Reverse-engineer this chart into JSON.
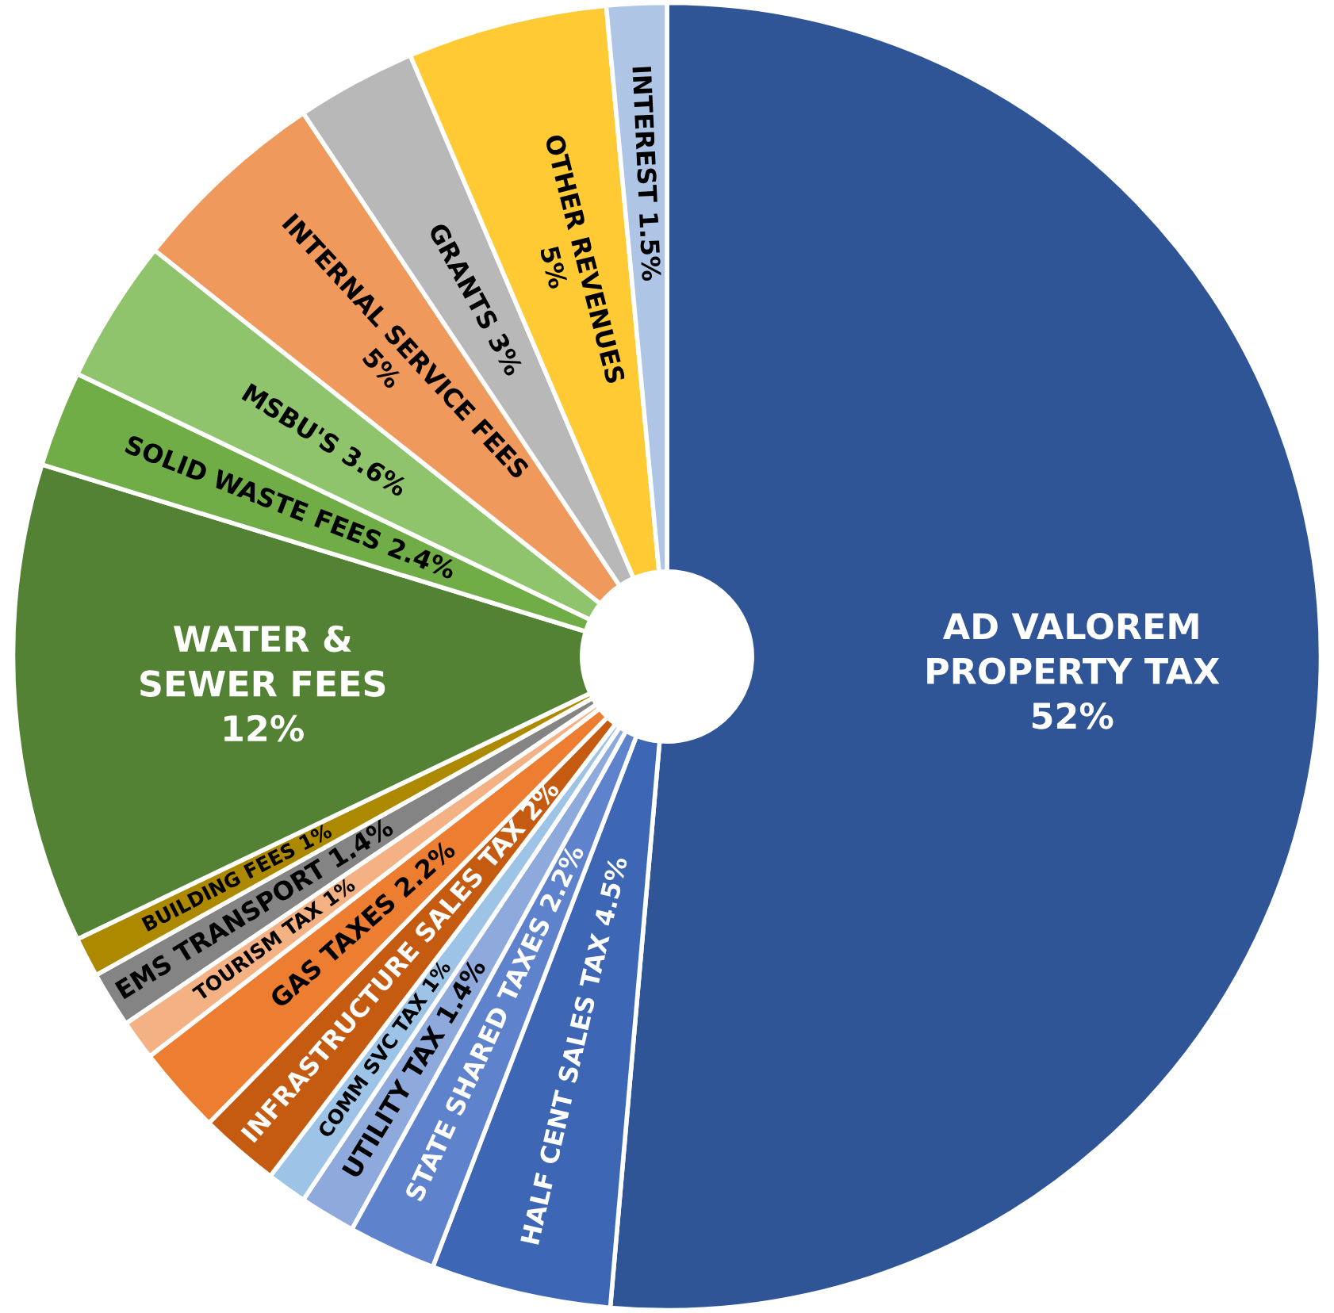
{
  "chart_data": {
    "type": "donut",
    "categories": [
      "AD VALOREM\nPROPERTY TAX",
      "HALF CENT SALES TAX",
      "STATE SHARED TAXES",
      "UTILITY TAX",
      "COMM SVC TAX",
      "INFRASTRUCTURE SALES TAX",
      "GAS TAXES",
      "TOURISM TAX",
      "EMS TRANSPORT",
      "BUILDING FEES",
      "WATER &\nSEWER FEES",
      "SOLID WASTE FEES",
      "MSBU'S",
      "INTERNAL SERVICE FEES",
      "GRANTS",
      "OTHER REVENUES",
      "INTEREST"
    ],
    "values": [
      52,
      4.5,
      2.2,
      1.4,
      1,
      2,
      2.2,
      1,
      1.4,
      1,
      12,
      2.4,
      3.6,
      5,
      3,
      5,
      1.5
    ],
    "value_labels": [
      "52%",
      "4.5%",
      "2.2%",
      "1.4%",
      "1%",
      "2%",
      "2.2%",
      "1%",
      "1.4%",
      "1%",
      "12%",
      "2.4%",
      "3.6%",
      "5%",
      "3%",
      "5%",
      "1.5%"
    ],
    "colors": [
      "#2f5597",
      "#3d67b5",
      "#5f82cc",
      "#8eaadc",
      "#9dc3e6",
      "#c55a11",
      "#ed7d31",
      "#f4b183",
      "#848484",
      "#ad8900",
      "#548235",
      "#70ad47",
      "#8fc46d",
      "#f0995c",
      "#b8b8b8",
      "#ffca33",
      "#aec5e6"
    ],
    "legend": false
  }
}
